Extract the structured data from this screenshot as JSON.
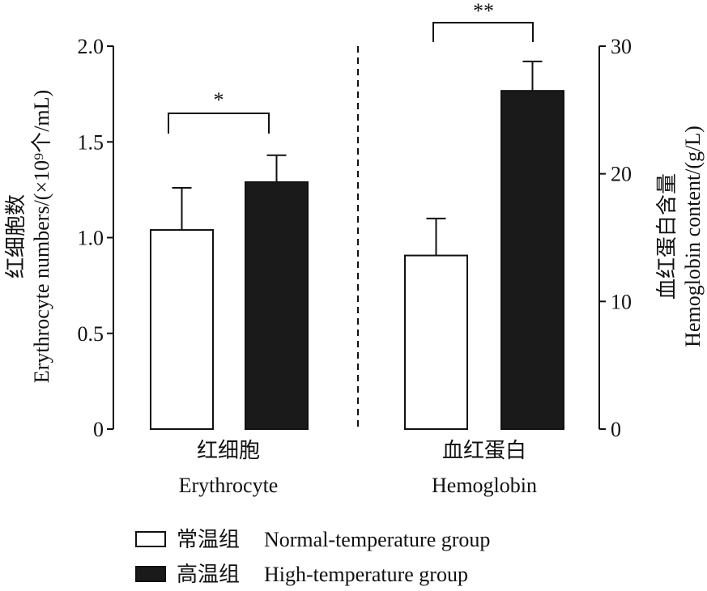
{
  "chart_data": {
    "type": "bar",
    "categories": [
      {
        "zh": "红细胞",
        "en": "Erythrocyte",
        "axis": "left"
      },
      {
        "zh": "血红蛋白",
        "en": "Hemoglobin",
        "axis": "right"
      }
    ],
    "series": [
      {
        "name_zh": "常温组",
        "name_en": "Normal-temperature group",
        "color": "#ffffff",
        "values": [
          1.04,
          13.6
        ],
        "errors": [
          0.22,
          2.9
        ]
      },
      {
        "name_zh": "高温组",
        "name_en": "High-temperature group",
        "color": "#1a1a1a",
        "values": [
          1.29,
          26.5
        ],
        "errors": [
          0.14,
          2.3
        ]
      }
    ],
    "left_axis": {
      "label_zh": "红细胞数",
      "label_en": "Erythrocyte numbers/(×10⁹个/mL)",
      "ylim": [
        0,
        2.0
      ],
      "ticks": [
        "0",
        "0.5",
        "1.0",
        "1.5",
        "2.0"
      ],
      "tick_values": [
        0,
        0.5,
        1.0,
        1.5,
        2.0
      ]
    },
    "right_axis": {
      "label_zh": "血红蛋白含量",
      "label_en": "Hemoglobin content/(g/L)",
      "ylim": [
        0,
        30
      ],
      "ticks": [
        "0",
        "10",
        "20",
        "30"
      ],
      "tick_values": [
        0,
        10,
        20,
        30
      ]
    },
    "significance": [
      "*",
      "**"
    ],
    "legend_position": "bottom-left"
  }
}
